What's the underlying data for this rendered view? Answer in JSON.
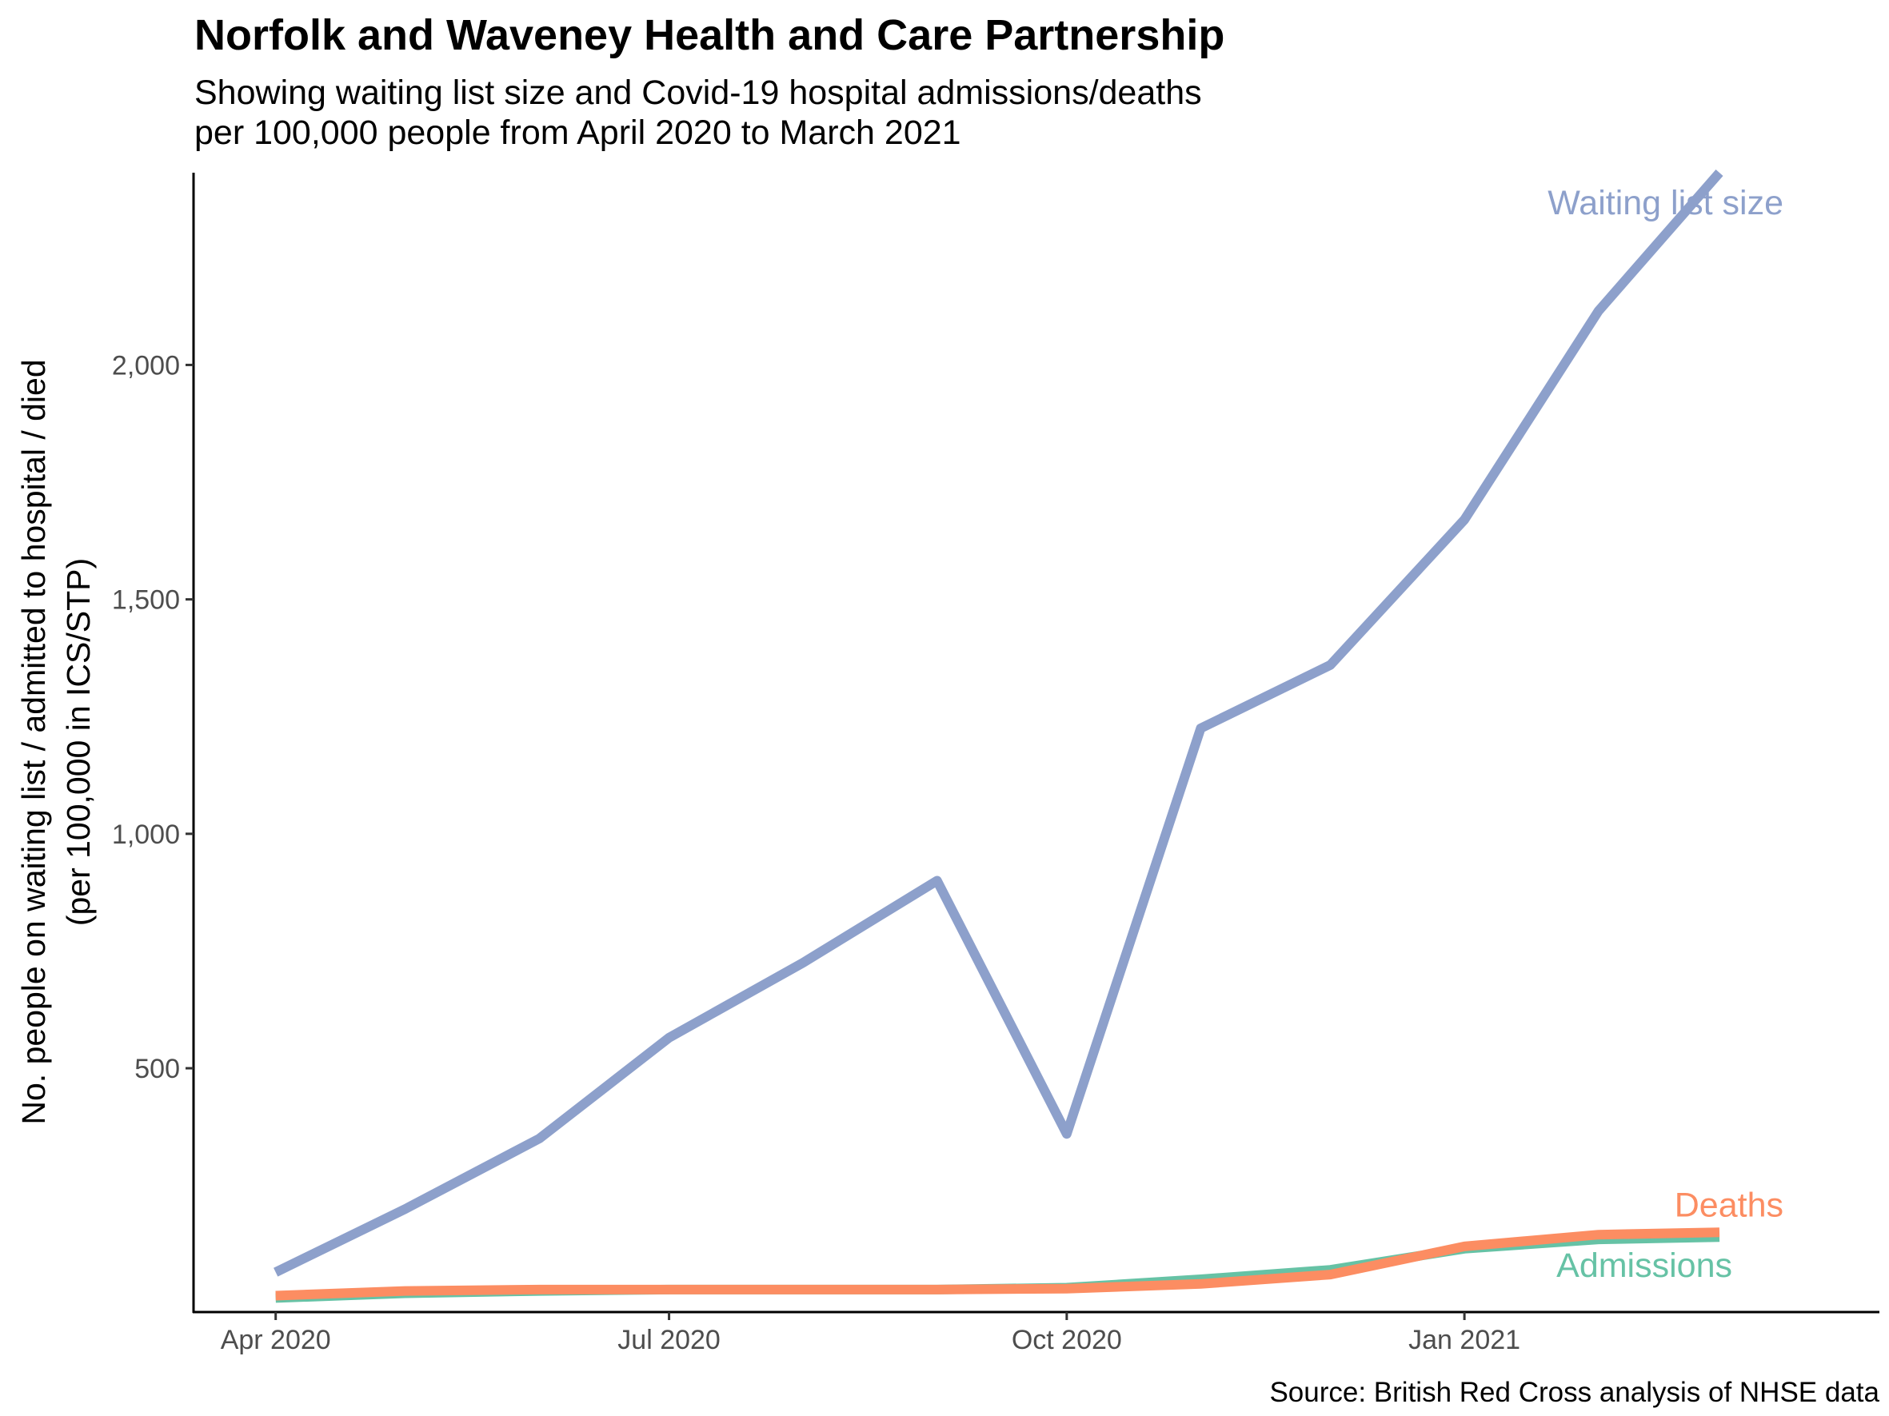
{
  "chart_data": {
    "type": "line",
    "title": "Norfolk and Waveney Health and Care Partnership",
    "subtitle_lines": [
      "Showing waiting list size and Covid-19 hospital admissions/deaths",
      "per 100,000 people from April 2020 to March 2021"
    ],
    "ylabel_lines": [
      "No. people on waiting list / admitted to hospital / died",
      "(per 100,000 in ICS/STP)"
    ],
    "xlabel": "",
    "caption": "Source: British Red Cross analysis of NHSE data",
    "x": [
      "2020-04-01",
      "2020-05-01",
      "2020-06-01",
      "2020-07-01",
      "2020-08-01",
      "2020-09-01",
      "2020-10-01",
      "2020-11-01",
      "2020-12-01",
      "2021-01-01",
      "2021-02-01",
      "2021-03-01"
    ],
    "x_ticks": [
      {
        "date": "2020-04-01",
        "label": "Apr 2020"
      },
      {
        "date": "2020-07-01",
        "label": "Jul 2020"
      },
      {
        "date": "2020-10-01",
        "label": "Oct 2020"
      },
      {
        "date": "2021-01-01",
        "label": "Jan 2021"
      }
    ],
    "y_ticks": [
      {
        "value": 500,
        "label": "500"
      },
      {
        "value": 1000,
        "label": "1,000"
      },
      {
        "value": 1500,
        "label": "1,500"
      },
      {
        "value": 2000,
        "label": "2,000"
      }
    ],
    "xlim": [
      "2020-03-13",
      "2021-04-07"
    ],
    "ylim": [
      -20,
      2410
    ],
    "grid": false,
    "series": [
      {
        "key": "admissions",
        "name": "Admissions",
        "color": "#66c2a5",
        "values": [
          10,
          20,
          25,
          28,
          28,
          28,
          32,
          50,
          70,
          115,
          135,
          140
        ]
      },
      {
        "key": "waiting",
        "name": "Waiting list size",
        "color": "#8da0cb",
        "values": [
          65,
          200,
          350,
          565,
          725,
          900,
          360,
          1225,
          1360,
          1670,
          2115,
          2410
        ]
      },
      {
        "key": "deaths",
        "name": "Deaths",
        "color": "#fc8d62",
        "values": [
          15,
          25,
          28,
          28,
          28,
          28,
          30,
          40,
          60,
          120,
          145,
          150
        ]
      }
    ]
  }
}
